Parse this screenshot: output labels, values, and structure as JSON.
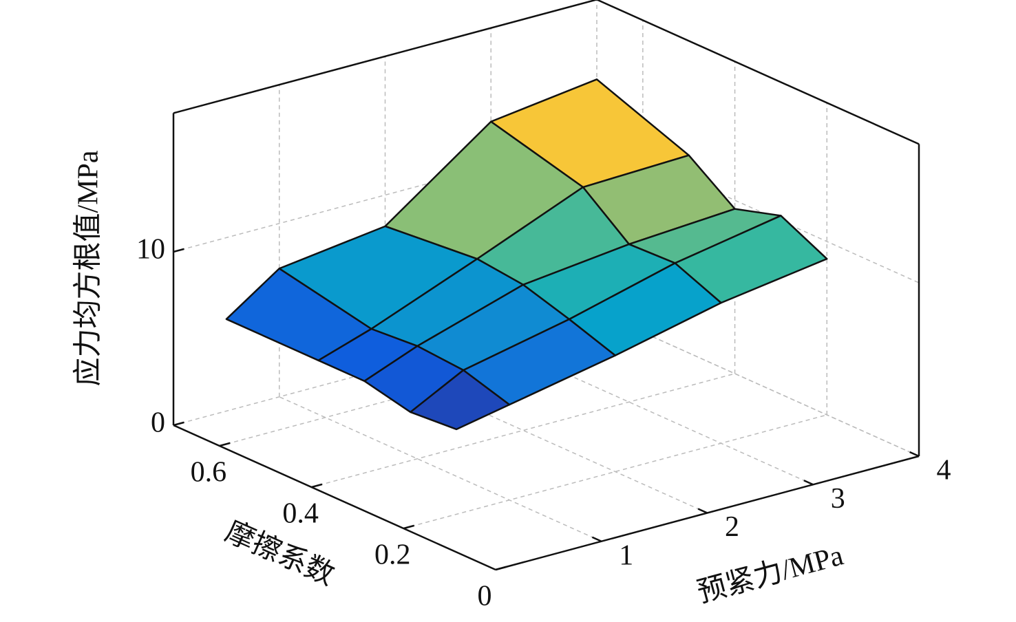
{
  "chart_data": {
    "type": "surface",
    "xlabel": "预紧力/MPa",
    "ylabel": "摩擦系数",
    "zlabel": "应力均方根值/MPa",
    "x": [
      0.5,
      1,
      2,
      3,
      4
    ],
    "y": [
      0.2,
      0.3,
      0.4,
      0.5,
      0.7
    ],
    "z": [
      [
        4.9,
        5.5,
        6.7,
        8.1,
        9.0
      ],
      [
        4.7,
        6.3,
        7.6,
        9.2,
        10.3
      ],
      [
        5.3,
        6.5,
        8.4,
        9.1,
        9.5
      ],
      [
        5.3,
        6.3,
        8.7,
        11.2,
        11.4
      ],
      [
        5.3,
        7.4,
        8.2,
        12.6,
        13.4
      ]
    ],
    "xlim": [
      0,
      4
    ],
    "xticks": [
      1,
      2,
      3,
      4
    ],
    "ylim": [
      0,
      0.7
    ],
    "yticks": [
      0,
      0.2,
      0.4,
      0.6
    ],
    "zlim": [
      0,
      18
    ],
    "zticks": [
      0,
      10
    ],
    "grid": true,
    "colormap": [
      "#352a87",
      "#0f5cdd",
      "#1481d6",
      "#06a4ca",
      "#2eb7a4",
      "#87bf77",
      "#d1bb59",
      "#fec832",
      "#f9fb0e"
    ]
  }
}
